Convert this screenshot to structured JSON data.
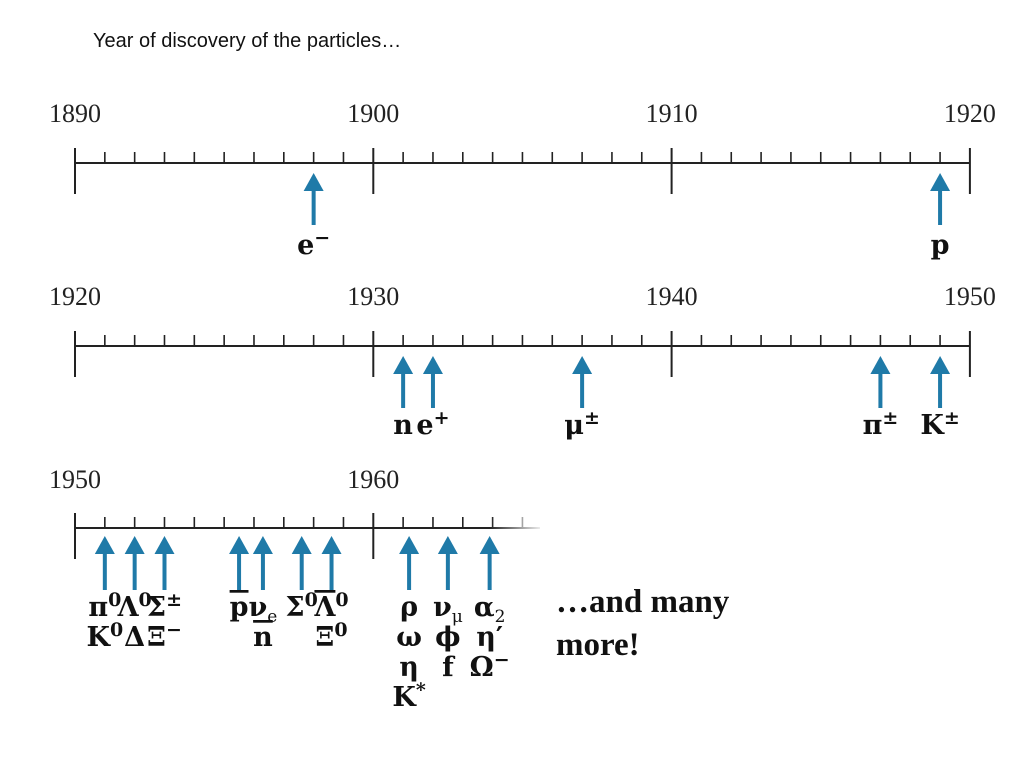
{
  "title": "Year of discovery of the particles…",
  "more_text": [
    "…and many",
    "more!"
  ],
  "arrow_color": "#1f7aa8",
  "rows": [
    {
      "start": 1890,
      "end": 1920,
      "labels": [
        "1890",
        "1900",
        "1910",
        "1920"
      ],
      "discoveries": [
        {
          "year": 1898,
          "lines": [
            [
              {
                "t": "e"
              },
              {
                "t": "−",
                "sup": true
              }
            ]
          ]
        },
        {
          "year": 1919,
          "lines": [
            [
              {
                "t": "p"
              }
            ]
          ]
        }
      ]
    },
    {
      "start": 1920,
      "end": 1950,
      "labels": [
        "1920",
        "1930",
        "1940",
        "1950"
      ],
      "discoveries": [
        {
          "year": 1931,
          "lines": [
            [
              {
                "t": "n"
              }
            ]
          ]
        },
        {
          "year": 1932,
          "lines": [
            [
              {
                "t": "e"
              },
              {
                "t": "+",
                "sup": true
              }
            ]
          ]
        },
        {
          "year": 1937,
          "lines": [
            [
              {
                "t": "μ"
              },
              {
                "t": "±",
                "sup": true
              }
            ]
          ]
        },
        {
          "year": 1947,
          "lines": [
            [
              {
                "t": "π"
              },
              {
                "t": "±",
                "sup": true
              }
            ]
          ]
        },
        {
          "year": 1949,
          "lines": [
            [
              {
                "t": "K"
              },
              {
                "t": "±",
                "sup": true
              }
            ]
          ]
        }
      ]
    },
    {
      "start": 1950,
      "end": 1965,
      "labels": [
        "1950",
        "1960"
      ],
      "discoveries": [
        {
          "year": 1951,
          "lines": [
            [
              {
                "t": "π"
              },
              {
                "t": "0",
                "sup": true
              }
            ],
            [
              {
                "t": "K"
              },
              {
                "t": "0",
                "sup": true
              }
            ]
          ]
        },
        {
          "year": 1952,
          "lines": [
            [
              {
                "t": "Λ"
              },
              {
                "t": "0",
                "sup": true
              }
            ],
            [
              {
                "t": "Δ"
              }
            ]
          ]
        },
        {
          "year": 1953,
          "lines": [
            [
              {
                "t": "Σ"
              },
              {
                "t": "±",
                "sup": true
              }
            ],
            [
              {
                "t": "Ξ"
              },
              {
                "t": "−",
                "sup": true
              }
            ]
          ]
        },
        {
          "year": 1955.5,
          "lines": [
            [
              {
                "t": "p",
                "bar": true
              }
            ]
          ]
        },
        {
          "year": 1956.3,
          "lines": [
            [
              {
                "t": "ν"
              },
              {
                "t": "e",
                "sub": true
              }
            ],
            [
              {
                "t": "n",
                "bar": true
              }
            ]
          ]
        },
        {
          "year": 1957.6,
          "lines": [
            [
              {
                "t": "Σ"
              },
              {
                "t": "0",
                "sup": true
              }
            ]
          ]
        },
        {
          "year": 1958.6,
          "lines": [
            [
              {
                "t": "Λ",
                "bar": true
              },
              {
                "t": "0",
                "sup": true
              }
            ],
            [
              {
                "t": "Ξ"
              },
              {
                "t": "0",
                "sup": true
              }
            ]
          ]
        },
        {
          "year": 1961.2,
          "lines": [
            [
              {
                "t": "ρ"
              }
            ],
            [
              {
                "t": "ω"
              }
            ],
            [
              {
                "t": "η"
              }
            ],
            [
              {
                "t": "K"
              },
              {
                "t": "*",
                "sup": true
              }
            ]
          ]
        },
        {
          "year": 1962.5,
          "lines": [
            [
              {
                "t": "ν"
              },
              {
                "t": "μ",
                "sub": true
              }
            ],
            [
              {
                "t": "ϕ"
              }
            ],
            [
              {
                "t": "f"
              }
            ]
          ]
        },
        {
          "year": 1963.9,
          "lines": [
            [
              {
                "t": "α"
              },
              {
                "t": "2",
                "sub": true
              }
            ],
            [
              {
                "t": "η′"
              }
            ],
            [
              {
                "t": "Ω"
              },
              {
                "t": "−",
                "sup": true
              }
            ]
          ]
        }
      ]
    }
  ]
}
